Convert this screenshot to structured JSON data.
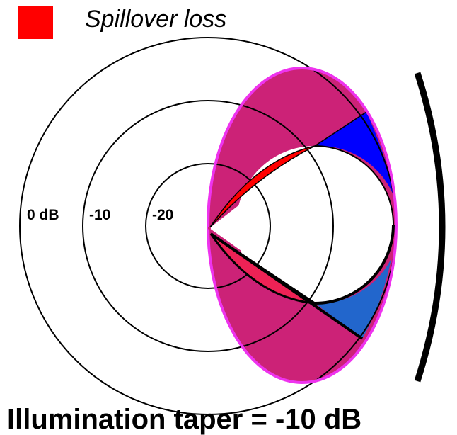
{
  "legend": {
    "label": "Spillover loss",
    "color": "#ff0000"
  },
  "rings": [
    {
      "label": "0 dB"
    },
    {
      "label": "-10"
    },
    {
      "label": "-20"
    }
  ],
  "caption": "Illumination taper = -10 dB",
  "colors": {
    "spillover": "#ff0000",
    "illumination_region": "#cc2277",
    "feed_outline": "#ee33ee",
    "blue_upper": "#0000ff",
    "blue_lower": "#2266cc",
    "lower_spill": "#ee2255",
    "reflector": "#000000"
  }
}
